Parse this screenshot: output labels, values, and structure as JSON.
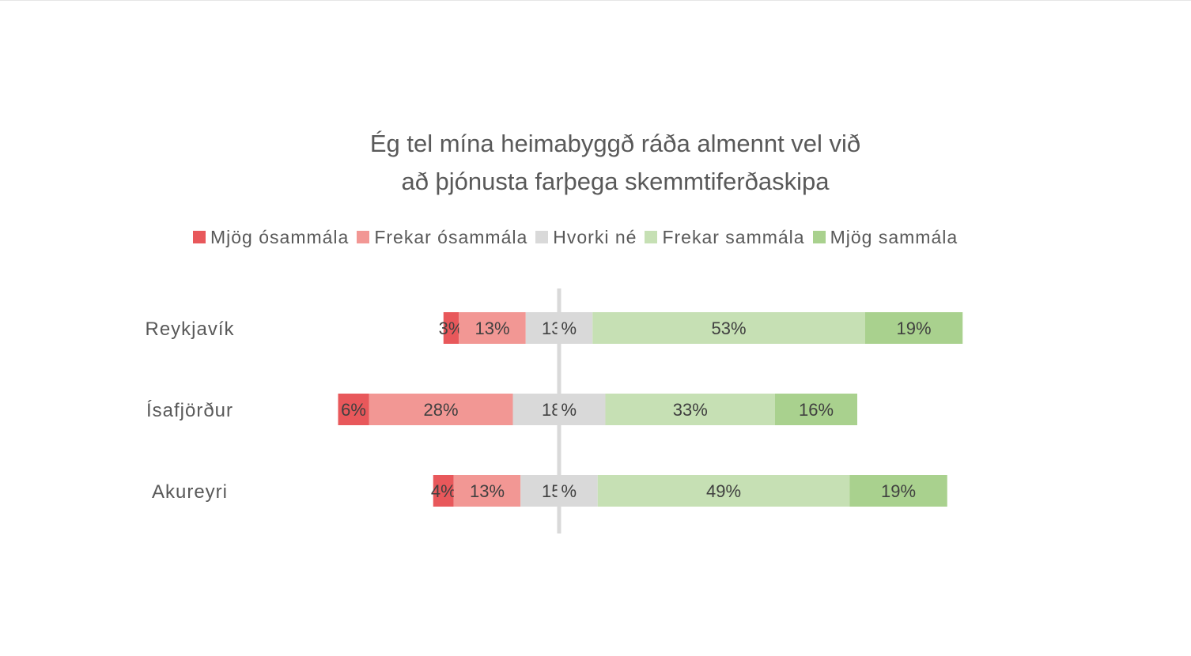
{
  "chart_data": {
    "type": "bar",
    "orientation": "horizontal",
    "stacked": "diverging",
    "title_lines": [
      "Ég tel mína heimabyggð ráða almennt vel við",
      "að þjónusta farþega skemmtiferðaskipa"
    ],
    "categories": [
      "Reykjavík",
      "Ísafjörður",
      "Akureyri"
    ],
    "series": [
      {
        "name": "Mjög ósammála",
        "color": "#e8585b",
        "values": [
          3,
          6,
          4
        ],
        "labels": [
          "3%",
          "6%",
          "4%"
        ]
      },
      {
        "name": "Frekar ósammála",
        "color": "#f29794",
        "values": [
          13,
          28,
          13
        ],
        "labels": [
          "13%",
          "28%",
          "13%"
        ]
      },
      {
        "name": "Hvorki né",
        "color": "#d9d9d9",
        "values": [
          13,
          18,
          15
        ],
        "labels": [
          "13%",
          "18%",
          "15%"
        ]
      },
      {
        "name": "Frekar sammála",
        "color": "#c6e0b4",
        "values": [
          53,
          33,
          49
        ],
        "labels": [
          "53%",
          "33%",
          "49%"
        ]
      },
      {
        "name": "Mjög sammála",
        "color": "#a9d18e",
        "values": [
          19,
          16,
          19
        ],
        "labels": [
          "19%",
          "16%",
          "19%"
        ]
      }
    ],
    "legend_position": "top",
    "grid": false,
    "center_line": true,
    "center_line_color": "#d9d9d9",
    "text_color": "#595959",
    "label_color": "#404040"
  }
}
